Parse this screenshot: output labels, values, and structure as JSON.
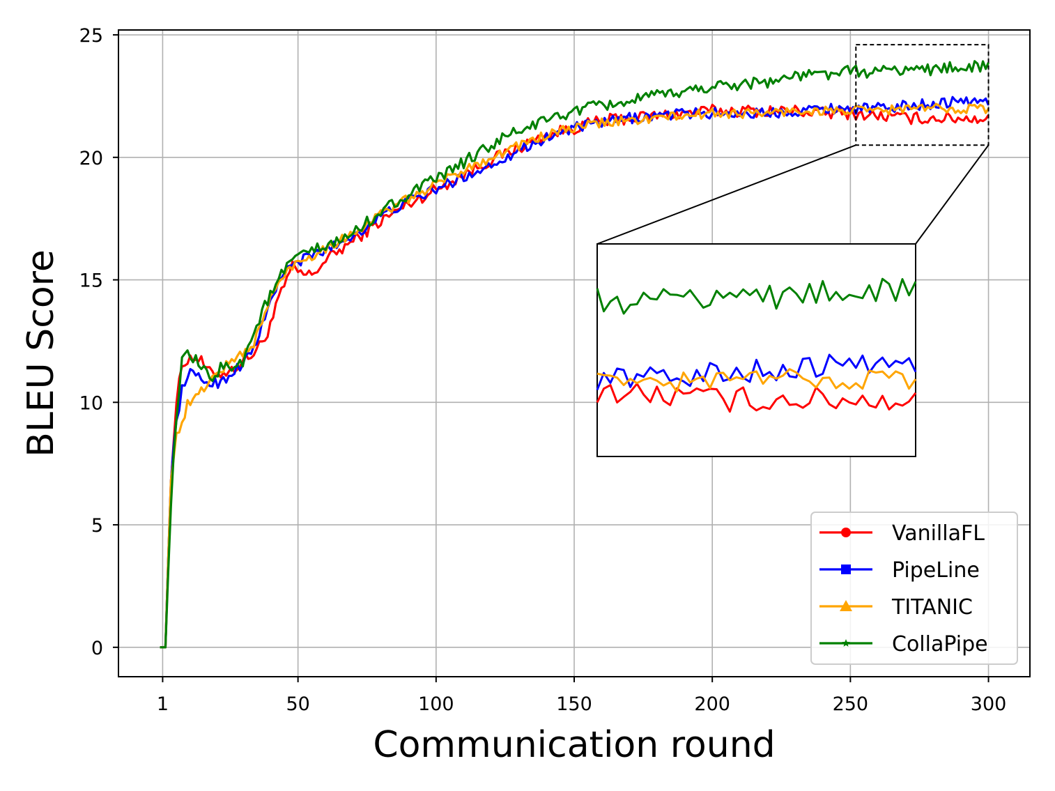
{
  "chart_data": {
    "type": "line",
    "title": "",
    "xlabel": "Communication round",
    "ylabel": "BLEU Score",
    "xlim": [
      -15,
      315
    ],
    "ylim": [
      -1.2,
      25.2
    ],
    "x_ticks": [
      1,
      50,
      100,
      150,
      200,
      250,
      300
    ],
    "y_ticks": [
      0,
      5,
      10,
      15,
      20,
      25
    ],
    "grid": true,
    "legend_position": "lower-right",
    "series": [
      {
        "name": "VanillaFL",
        "color": "#ff0000",
        "marker": "circle",
        "anchors": [
          [
            0,
            0
          ],
          [
            2,
            0
          ],
          [
            4,
            7
          ],
          [
            6,
            10
          ],
          [
            8,
            11.5
          ],
          [
            10,
            11.8
          ],
          [
            14,
            11.8
          ],
          [
            18,
            11.2
          ],
          [
            22,
            11.2
          ],
          [
            26,
            11.3
          ],
          [
            30,
            11.7
          ],
          [
            34,
            12.0
          ],
          [
            38,
            12.6
          ],
          [
            41,
            13.5
          ],
          [
            44,
            14.5
          ],
          [
            48,
            15.5
          ],
          [
            52,
            15.2
          ],
          [
            55,
            15.2
          ],
          [
            60,
            15.8
          ],
          [
            70,
            16.6
          ],
          [
            80,
            17.4
          ],
          [
            90,
            18.1
          ],
          [
            100,
            18.7
          ],
          [
            110,
            19.3
          ],
          [
            120,
            19.9
          ],
          [
            130,
            20.4
          ],
          [
            140,
            20.9
          ],
          [
            150,
            21.2
          ],
          [
            160,
            21.5
          ],
          [
            170,
            21.6
          ],
          [
            180,
            21.7
          ],
          [
            190,
            21.8
          ],
          [
            200,
            21.9
          ],
          [
            210,
            21.9
          ],
          [
            220,
            21.9
          ],
          [
            230,
            21.9
          ],
          [
            240,
            21.8
          ],
          [
            250,
            21.8
          ],
          [
            260,
            21.7
          ],
          [
            270,
            21.6
          ],
          [
            280,
            21.6
          ],
          [
            290,
            21.6
          ],
          [
            300,
            21.6
          ]
        ],
        "noise": 0.25
      },
      {
        "name": "PipeLine",
        "color": "#0000ff",
        "marker": "square",
        "anchors": [
          [
            0,
            0
          ],
          [
            2,
            0
          ],
          [
            4,
            7
          ],
          [
            6,
            9.2
          ],
          [
            8,
            10.5
          ],
          [
            10,
            11.2
          ],
          [
            14,
            11.0
          ],
          [
            18,
            10.8
          ],
          [
            22,
            10.8
          ],
          [
            26,
            11.2
          ],
          [
            30,
            11.6
          ],
          [
            34,
            12.2
          ],
          [
            38,
            13.4
          ],
          [
            41,
            14.4
          ],
          [
            44,
            15.2
          ],
          [
            48,
            15.6
          ],
          [
            55,
            16.0
          ],
          [
            60,
            16.2
          ],
          [
            70,
            16.8
          ],
          [
            80,
            17.6
          ],
          [
            90,
            18.2
          ],
          [
            100,
            18.7
          ],
          [
            110,
            19.2
          ],
          [
            120,
            19.7
          ],
          [
            130,
            20.3
          ],
          [
            140,
            20.8
          ],
          [
            150,
            21.2
          ],
          [
            160,
            21.4
          ],
          [
            170,
            21.6
          ],
          [
            180,
            21.7
          ],
          [
            190,
            21.8
          ],
          [
            200,
            21.8
          ],
          [
            210,
            21.8
          ],
          [
            220,
            21.8
          ],
          [
            230,
            21.9
          ],
          [
            240,
            22.0
          ],
          [
            250,
            22.0
          ],
          [
            260,
            22.0
          ],
          [
            270,
            22.1
          ],
          [
            280,
            22.2
          ],
          [
            290,
            22.3
          ],
          [
            300,
            22.3
          ]
        ],
        "noise": 0.22
      },
      {
        "name": "TITANIC",
        "color": "#ffa500",
        "marker": "triangle",
        "anchors": [
          [
            0,
            0
          ],
          [
            2,
            0
          ],
          [
            4,
            7
          ],
          [
            6,
            8.6
          ],
          [
            8,
            9.2
          ],
          [
            10,
            9.9
          ],
          [
            14,
            10.3
          ],
          [
            18,
            10.9
          ],
          [
            22,
            11.3
          ],
          [
            26,
            11.7
          ],
          [
            30,
            12.0
          ],
          [
            34,
            12.4
          ],
          [
            38,
            13.6
          ],
          [
            41,
            14.5
          ],
          [
            44,
            15.0
          ],
          [
            48,
            15.6
          ],
          [
            55,
            16.0
          ],
          [
            60,
            16.3
          ],
          [
            70,
            16.9
          ],
          [
            80,
            17.7
          ],
          [
            90,
            18.3
          ],
          [
            100,
            18.9
          ],
          [
            110,
            19.5
          ],
          [
            120,
            20.0
          ],
          [
            130,
            20.5
          ],
          [
            140,
            20.9
          ],
          [
            150,
            21.2
          ],
          [
            160,
            21.4
          ],
          [
            170,
            21.5
          ],
          [
            180,
            21.6
          ],
          [
            190,
            21.7
          ],
          [
            200,
            21.8
          ],
          [
            210,
            21.8
          ],
          [
            220,
            21.8
          ],
          [
            230,
            21.9
          ],
          [
            240,
            21.9
          ],
          [
            250,
            21.9
          ],
          [
            260,
            21.9
          ],
          [
            270,
            22.0
          ],
          [
            280,
            22.0
          ],
          [
            290,
            22.0
          ],
          [
            300,
            22.0
          ]
        ],
        "noise": 0.2
      },
      {
        "name": "CollaPipe",
        "color": "#008000",
        "marker": "star",
        "anchors": [
          [
            0,
            0
          ],
          [
            2,
            0
          ],
          [
            4,
            6
          ],
          [
            6,
            9.5
          ],
          [
            8,
            11.6
          ],
          [
            10,
            11.9
          ],
          [
            14,
            11.6
          ],
          [
            18,
            10.9
          ],
          [
            22,
            11.4
          ],
          [
            26,
            11.5
          ],
          [
            30,
            11.7
          ],
          [
            34,
            12.8
          ],
          [
            38,
            14.0
          ],
          [
            41,
            14.5
          ],
          [
            44,
            15.2
          ],
          [
            48,
            15.8
          ],
          [
            55,
            16.2
          ],
          [
            60,
            16.3
          ],
          [
            70,
            16.9
          ],
          [
            80,
            17.8
          ],
          [
            90,
            18.5
          ],
          [
            100,
            19.1
          ],
          [
            110,
            19.8
          ],
          [
            120,
            20.5
          ],
          [
            130,
            21.1
          ],
          [
            140,
            21.5
          ],
          [
            150,
            21.9
          ],
          [
            160,
            22.1
          ],
          [
            170,
            22.3
          ],
          [
            180,
            22.5
          ],
          [
            190,
            22.7
          ],
          [
            200,
            22.9
          ],
          [
            210,
            23.0
          ],
          [
            220,
            23.1
          ],
          [
            230,
            23.3
          ],
          [
            240,
            23.4
          ],
          [
            250,
            23.5
          ],
          [
            260,
            23.5
          ],
          [
            270,
            23.6
          ],
          [
            280,
            23.6
          ],
          [
            290,
            23.7
          ],
          [
            300,
            23.7
          ]
        ],
        "noise": 0.25
      }
    ],
    "inset": {
      "source_xrange": [
        252,
        300
      ],
      "source_yrange": [
        20.5,
        24.6
      ]
    }
  }
}
